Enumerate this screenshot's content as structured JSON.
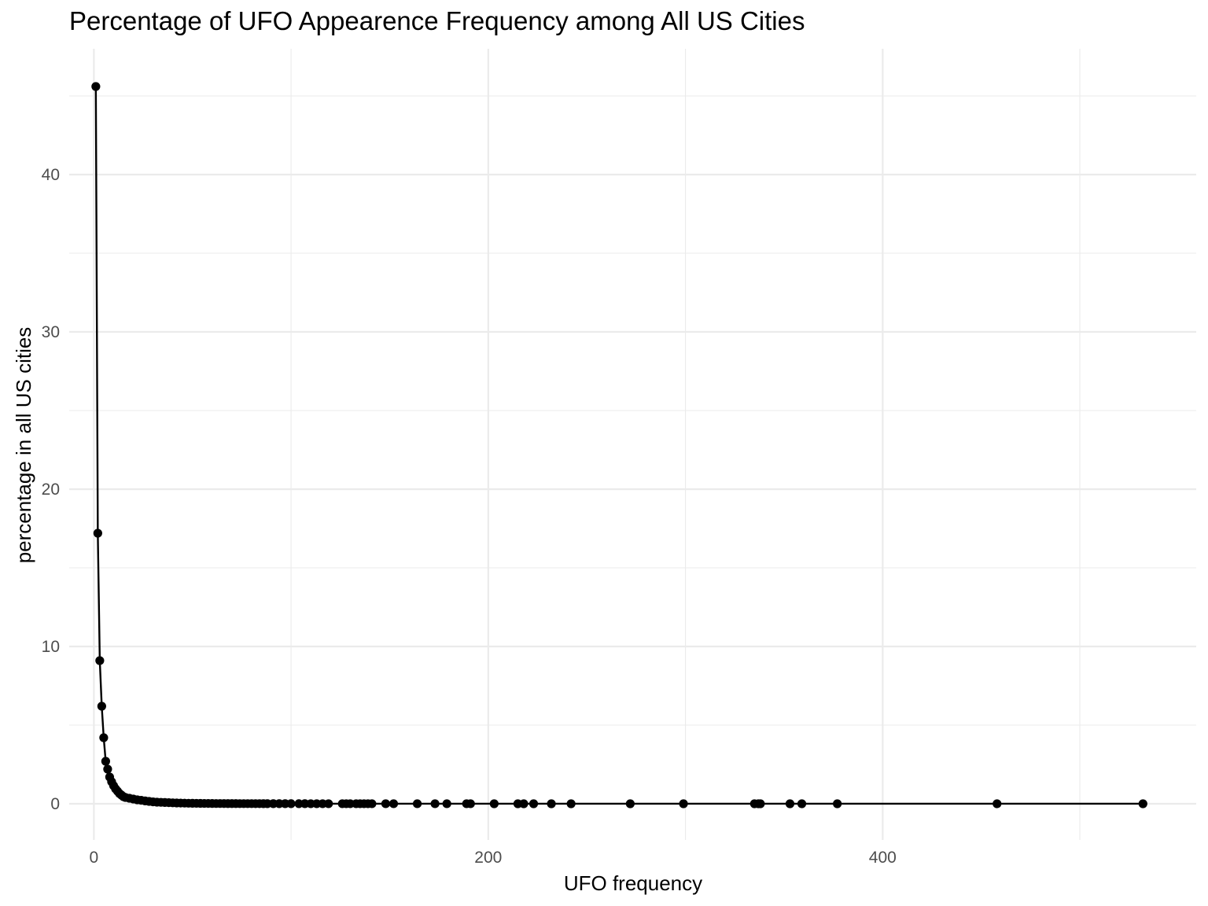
{
  "chart_data": {
    "type": "line",
    "title": "Percentage of UFO Appearence Frequency among All US Cities",
    "xlabel": "UFO frequency",
    "ylabel": "percentage in all US cities",
    "xlim": [
      -12.5,
      559
    ],
    "ylim": [
      -2.3,
      48
    ],
    "x_major_ticks": [
      0,
      200,
      400
    ],
    "x_tick_labels": [
      "0",
      "200",
      "400"
    ],
    "x_minor_ticks": [
      100,
      300,
      500
    ],
    "y_major_ticks": [
      0,
      10,
      20,
      30,
      40
    ],
    "y_tick_labels": [
      "0",
      "10",
      "20",
      "30",
      "40"
    ],
    "y_minor_ticks": [
      5,
      15,
      25,
      35,
      45
    ],
    "grid": true,
    "legend": "none",
    "color": "#000000",
    "series": [
      {
        "x": [
          1,
          2,
          3,
          4,
          5,
          6,
          7,
          8,
          9,
          10,
          11,
          12,
          13,
          14,
          15,
          16,
          18,
          20,
          22,
          24,
          26,
          28,
          30,
          32,
          34,
          36,
          38,
          40,
          42,
          44,
          46,
          48,
          50,
          52,
          54,
          56,
          58,
          60,
          62,
          64,
          66,
          68,
          70,
          72,
          74,
          76,
          78,
          80,
          82,
          84,
          86,
          88,
          91,
          94,
          97,
          100,
          104,
          107,
          110,
          113,
          116,
          119,
          126,
          128,
          130,
          133,
          135,
          137,
          139,
          141,
          148,
          152,
          164,
          173,
          179,
          189,
          191,
          203,
          215,
          218,
          223,
          232,
          242,
          272,
          299,
          335,
          337,
          338,
          353,
          359,
          377,
          458,
          532
        ],
        "y": [
          45.6,
          17.2,
          9.1,
          6.2,
          4.2,
          2.7,
          2.2,
          1.7,
          1.4,
          1.15,
          0.95,
          0.8,
          0.65,
          0.55,
          0.45,
          0.4,
          0.35,
          0.3,
          0.25,
          0.22,
          0.18,
          0.15,
          0.12,
          0.1,
          0.09,
          0.08,
          0.07,
          0.06,
          0.05,
          0.045,
          0.04,
          0.035,
          0.03,
          0.028,
          0.025,
          0.022,
          0.02,
          0.018,
          0.016,
          0.015,
          0.014,
          0.013,
          0.012,
          0.011,
          0.01,
          0.01,
          0.009,
          0.009,
          0.008,
          0.008,
          0.007,
          0.007,
          0.006,
          0.006,
          0.006,
          0.005,
          0.005,
          0.005,
          0.004,
          0.004,
          0.004,
          0.004,
          0.003,
          0.003,
          0.003,
          0.003,
          0.003,
          0.003,
          0.003,
          0.003,
          0.002,
          0.002,
          0.002,
          0.002,
          0.002,
          0.002,
          0.002,
          0.001,
          0.001,
          0.001,
          0.001,
          0.001,
          0.001,
          0.001,
          0.001,
          0.001,
          0.001,
          0.001,
          0.001,
          0.001,
          0.001,
          0.001,
          0.001
        ]
      }
    ]
  }
}
